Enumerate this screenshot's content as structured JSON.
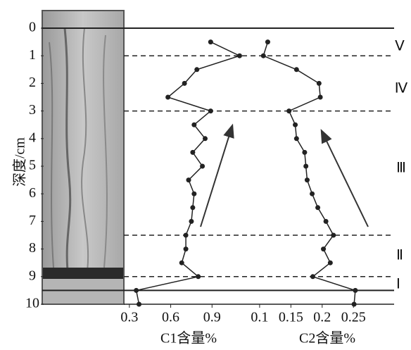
{
  "chart_data": {
    "type": "line",
    "ylabel": "深度/cm",
    "y": [
      0.5,
      1,
      1.5,
      2,
      2.5,
      3,
      3.5,
      4,
      4.5,
      5,
      5.5,
      6,
      6.5,
      7,
      7.5,
      8,
      8.5,
      9,
      9.5,
      10
    ],
    "ylim": [
      0,
      10
    ],
    "yticks": [
      0,
      1,
      2,
      3,
      4,
      5,
      6,
      7,
      8,
      9,
      10
    ],
    "solid_lines": [
      0,
      9.5
    ],
    "dashed_lines": [
      1,
      3,
      7.5,
      9
    ],
    "zones": [
      "Ⅴ",
      "Ⅳ",
      "Ⅲ",
      "Ⅱ",
      "Ⅰ"
    ],
    "panels": [
      {
        "xlabel": "C1含量%",
        "xlim": [
          0.26,
          1.2
        ],
        "xticks": [
          0.3,
          0.6,
          0.9
        ],
        "color": "#222222",
        "values": [
          0.89,
          1.1,
          0.79,
          0.7,
          0.58,
          0.89,
          0.77,
          0.85,
          0.76,
          0.83,
          0.73,
          0.77,
          0.76,
          0.75,
          0.71,
          0.71,
          0.68,
          0.8,
          0.35,
          0.37
        ]
      },
      {
        "xlabel": "C2含量%",
        "xlim": [
          0.09,
          0.315
        ],
        "xticks": [
          0.1,
          0.15,
          0.2,
          0.25
        ],
        "color": "#222222",
        "values": [
          0.113,
          0.106,
          0.159,
          0.195,
          0.197,
          0.147,
          0.157,
          0.159,
          0.172,
          0.174,
          0.176,
          0.184,
          0.193,
          0.206,
          0.218,
          0.202,
          0.213,
          0.185,
          0.253,
          0.251
        ]
      }
    ]
  }
}
